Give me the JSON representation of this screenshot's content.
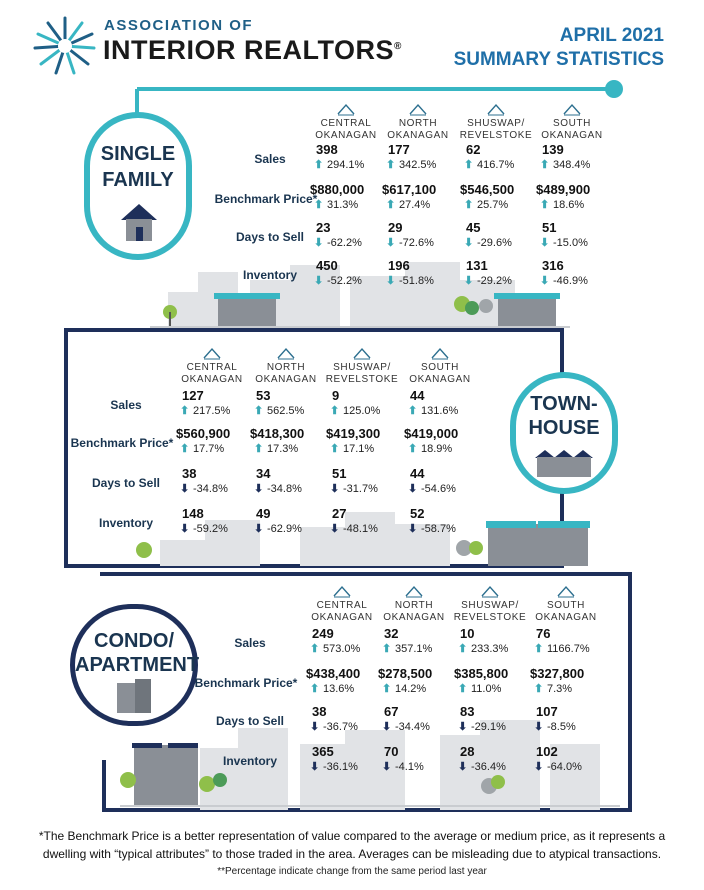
{
  "header": {
    "logo_line1": "ASSOCIATION OF",
    "logo_line2": "INTERIOR REALTORS",
    "reg_mark": "®",
    "title_line1": "APRIL 2021",
    "title_line2": "SUMMARY STATISTICS"
  },
  "regions": [
    "CENTRAL\nOKANAGAN",
    "NORTH\nOKANAGAN",
    "SHUSWAP/\nREVELSTOKE",
    "SOUTH\nOKANAGAN"
  ],
  "region_lines": [
    [
      "CENTRAL",
      "OKANAGAN"
    ],
    [
      "NORTH",
      "OKANAGAN"
    ],
    [
      "SHUSWAP/",
      "REVELSTOKE"
    ],
    [
      "SOUTH",
      "OKANAGAN"
    ]
  ],
  "row_labels": {
    "sales": "Sales",
    "benchmark": "Benchmark Price*",
    "days": "Days to Sell",
    "inventory": "Inventory"
  },
  "colors": {
    "teal": "#38b6c3",
    "navy": "#1e2f5a",
    "up_arrow": "#3aa9b5",
    "down_arrow": "#2a6fa0"
  },
  "single_family": {
    "badge_line1": "SINGLE",
    "badge_line2": "FAMILY",
    "sales": [
      [
        "398",
        "294.1%",
        "up"
      ],
      [
        "177",
        "342.5%",
        "up"
      ],
      [
        "62",
        "416.7%",
        "up"
      ],
      [
        "139",
        "348.4%",
        "up"
      ]
    ],
    "benchmark": [
      [
        "$880,000",
        "31.3%",
        "up"
      ],
      [
        "$617,100",
        "27.4%",
        "up"
      ],
      [
        "$546,500",
        "25.7%",
        "up"
      ],
      [
        "$489,900",
        "18.6%",
        "up"
      ]
    ],
    "days": [
      [
        "23",
        "-62.2%",
        "down"
      ],
      [
        "29",
        "-72.6%",
        "down"
      ],
      [
        "45",
        "-29.6%",
        "down"
      ],
      [
        "51",
        "-15.0%",
        "down"
      ]
    ],
    "inventory": [
      [
        "450",
        "-52.2%",
        "down"
      ],
      [
        "196",
        "-51.8%",
        "down"
      ],
      [
        "131",
        "-29.2%",
        "down"
      ],
      [
        "316",
        "-46.9%",
        "down"
      ]
    ]
  },
  "townhouse": {
    "badge_line1": "TOWN-",
    "badge_line2": "HOUSE",
    "sales": [
      [
        "127",
        "217.5%",
        "up"
      ],
      [
        "53",
        "562.5%",
        "up"
      ],
      [
        "9",
        "125.0%",
        "up"
      ],
      [
        "44",
        "131.6%",
        "up"
      ]
    ],
    "benchmark": [
      [
        "$560,900",
        "17.7%",
        "up"
      ],
      [
        "$418,300",
        "17.3%",
        "up"
      ],
      [
        "$419,300",
        "17.1%",
        "up"
      ],
      [
        "$419,000",
        "18.9%",
        "up"
      ]
    ],
    "days": [
      [
        "38",
        "-34.8%",
        "down"
      ],
      [
        "34",
        "-34.8%",
        "down"
      ],
      [
        "51",
        "-31.7%",
        "down"
      ],
      [
        "44",
        "-54.6%",
        "down"
      ]
    ],
    "inventory": [
      [
        "148",
        "-59.2%",
        "down"
      ],
      [
        "49",
        "-62.9%",
        "down"
      ],
      [
        "27",
        "-48.1%",
        "down"
      ],
      [
        "52",
        "-58.7%",
        "down"
      ]
    ]
  },
  "condo": {
    "badge_line1": "CONDO/",
    "badge_line2": "APARTMENT",
    "sales": [
      [
        "249",
        "573.0%",
        "up"
      ],
      [
        "32",
        "357.1%",
        "up"
      ],
      [
        "10",
        "233.3%",
        "up"
      ],
      [
        "76",
        "1166.7%",
        "up"
      ]
    ],
    "benchmark": [
      [
        "$438,400",
        "13.6%",
        "up"
      ],
      [
        "$278,500",
        "14.2%",
        "up"
      ],
      [
        "$385,800",
        "11.0%",
        "up"
      ],
      [
        "$327,800",
        "7.3%",
        "up"
      ]
    ],
    "days": [
      [
        "38",
        "-36.7%",
        "down"
      ],
      [
        "67",
        "-34.4%",
        "down"
      ],
      [
        "83",
        "-29.1%",
        "down"
      ],
      [
        "107",
        "-8.5%",
        "down"
      ]
    ],
    "inventory": [
      [
        "365",
        "-36.1%",
        "down"
      ],
      [
        "70",
        "-4.1%",
        "down"
      ],
      [
        "28",
        "-36.4%",
        "down"
      ],
      [
        "102",
        "-64.0%",
        "down"
      ]
    ]
  },
  "footnote": {
    "line1": "*The Benchmark Price is a better representation of value compared to the average or medium price, as it represents a",
    "line2": "dwelling with “typical attributes” to those traded in the area. Averages can be misleading due to atypical transactions.",
    "line3": "**Percentage indicate change from the same period last year"
  }
}
